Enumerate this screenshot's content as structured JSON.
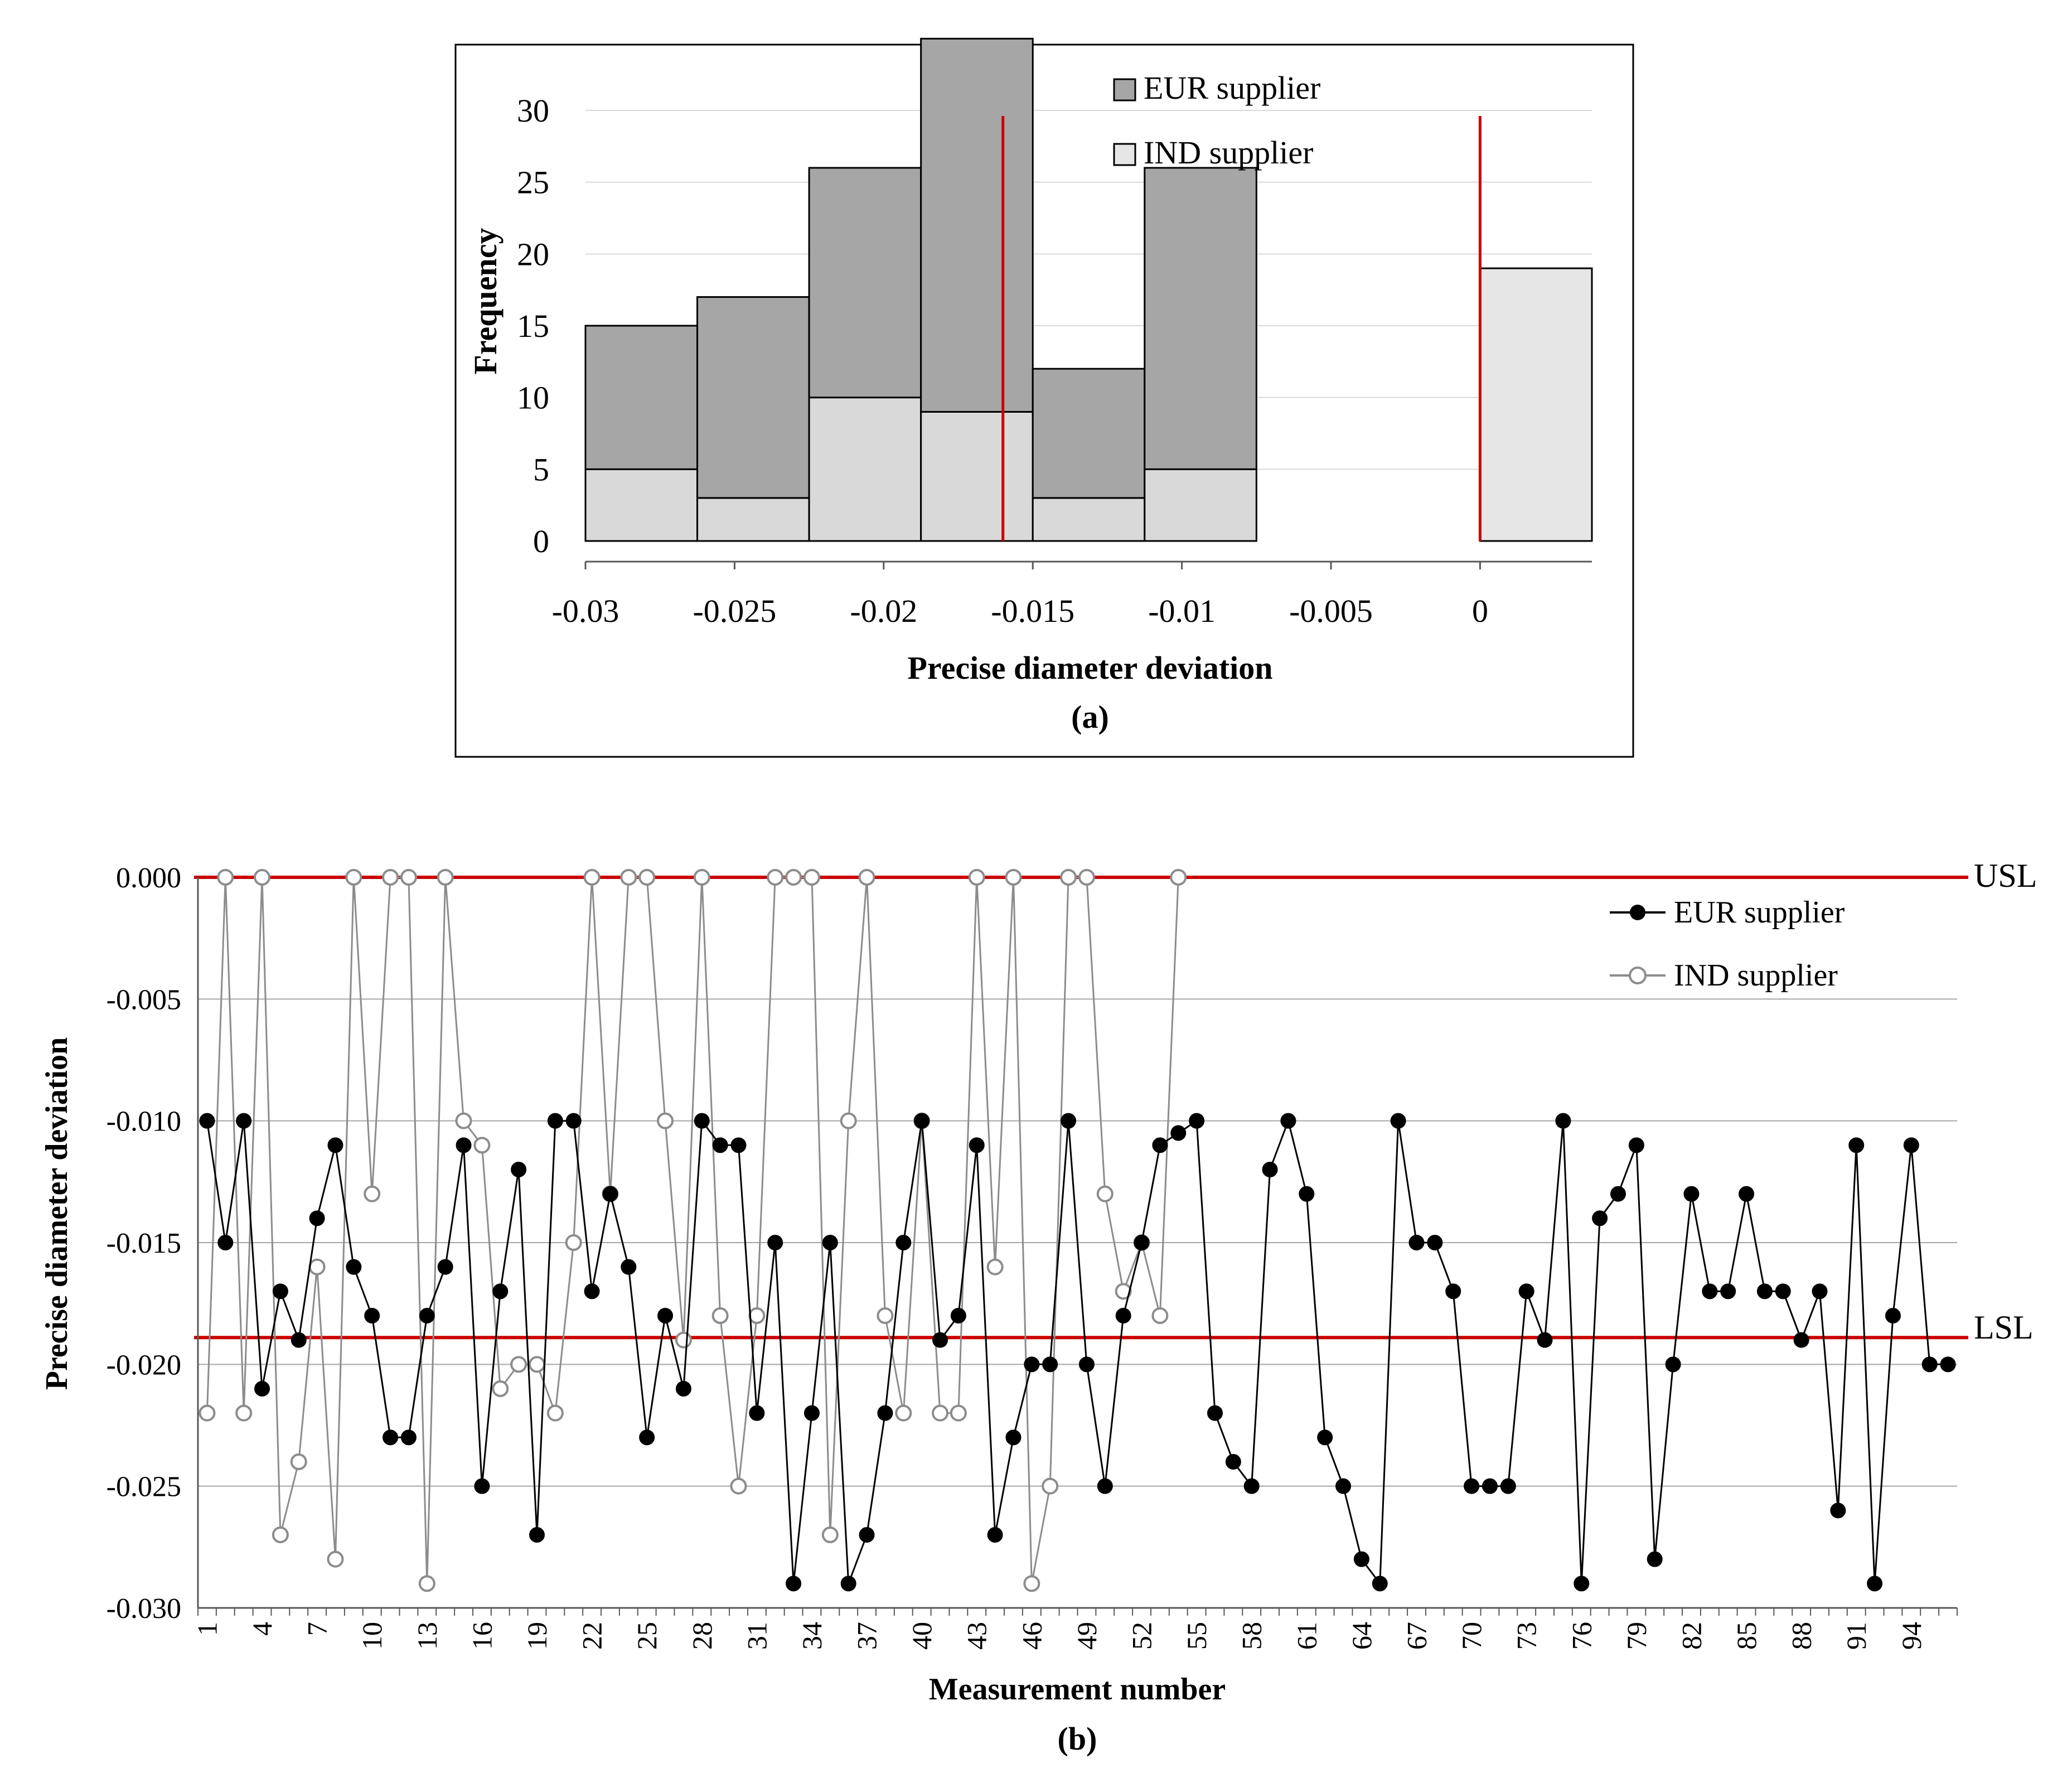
{
  "colors": {
    "eur_bar": "#a6a6a6",
    "ind_bar": "#d9d9d9",
    "ind_bar_light": "#e6e6e6",
    "spec_line": "#cc0000",
    "eur_line": "#000000",
    "ind_line": "#8c8c8c",
    "grid": "#d9d9d9",
    "grid_dark": "#a6a6a6"
  },
  "chart_data": [
    {
      "type": "bar",
      "panel_label": "(a)",
      "title": "",
      "xlabel": "Precise diameter deviation",
      "ylabel": "Frequency",
      "xlim": [
        -0.03,
        0.00375
      ],
      "ylim": [
        0,
        30
      ],
      "x_ticks": [
        -0.03,
        -0.025,
        -0.02,
        -0.015,
        -0.01,
        -0.005,
        0
      ],
      "x_tick_labels": [
        "-0.03",
        "-0.025",
        "-0.02",
        "-0.015",
        "-0.01",
        "-0.005",
        "0"
      ],
      "y_ticks": [
        0,
        5,
        10,
        15,
        20,
        25,
        30
      ],
      "y_tick_labels": [
        "0",
        "5",
        "10",
        "15",
        "20",
        "25",
        "30"
      ],
      "grid": true,
      "legend": "top-right",
      "bin_edges": [
        [
          -0.03,
          -0.02625
        ],
        [
          -0.02625,
          -0.0225
        ],
        [
          -0.0225,
          -0.01875
        ],
        [
          -0.01875,
          -0.015
        ],
        [
          -0.015,
          -0.01125
        ],
        [
          -0.01125,
          -0.0075
        ],
        [
          0,
          0.00375
        ]
      ],
      "series": [
        {
          "name": "EUR supplier",
          "values": [
            10,
            14,
            16,
            26,
            9,
            21,
            0
          ]
        },
        {
          "name": "IND supplier",
          "values": [
            5,
            3,
            10,
            9,
            3,
            5,
            19
          ]
        }
      ],
      "spec_lines": [
        -0.016,
        0
      ]
    },
    {
      "type": "line",
      "panel_label": "(b)",
      "title": "",
      "xlabel": "Measurement number",
      "ylabel": "Precise diameter deviation",
      "ylim": [
        -0.03,
        0
      ],
      "y_ticks": [
        0,
        -0.005,
        -0.01,
        -0.015,
        -0.02,
        -0.025,
        -0.03
      ],
      "y_tick_labels": [
        "0.000",
        "-0.005",
        "-0.010",
        "-0.015",
        "-0.020",
        "-0.025",
        "-0.030"
      ],
      "x_tick_labels": [
        "1",
        "4",
        "7",
        "10",
        "13",
        "16",
        "19",
        "22",
        "25",
        "28",
        "31",
        "34",
        "37",
        "40",
        "43",
        "46",
        "49",
        "52",
        "55",
        "58",
        "61",
        "64",
        "67",
        "70",
        "73",
        "76",
        "79",
        "82",
        "85",
        "88",
        "91",
        "94"
      ],
      "grid": true,
      "legend": "top-right",
      "spec_limits": [
        {
          "name": "USL",
          "value": 0
        },
        {
          "name": "LSL",
          "value": -0.0189
        }
      ],
      "series": [
        {
          "name": "EUR supplier",
          "marker": "filled-circle",
          "values": [
            -0.01,
            -0.015,
            -0.01,
            -0.021,
            -0.017,
            -0.019,
            -0.014,
            -0.011,
            -0.016,
            -0.018,
            -0.023,
            -0.023,
            -0.018,
            -0.016,
            -0.011,
            -0.025,
            -0.017,
            -0.012,
            -0.027,
            -0.01,
            -0.01,
            -0.017,
            -0.013,
            -0.016,
            -0.023,
            -0.018,
            -0.021,
            -0.01,
            -0.011,
            -0.011,
            -0.022,
            -0.015,
            -0.029,
            -0.022,
            -0.015,
            -0.029,
            -0.027,
            -0.022,
            -0.015,
            -0.01,
            -0.019,
            -0.018,
            -0.011,
            -0.027,
            -0.023,
            -0.02,
            -0.02,
            -0.01,
            -0.02,
            -0.025,
            -0.018,
            -0.015,
            -0.011,
            -0.0105,
            -0.01,
            -0.022,
            -0.024,
            -0.025,
            -0.012,
            -0.01,
            -0.013,
            -0.023,
            -0.025,
            -0.028,
            -0.029,
            -0.01,
            -0.015,
            -0.015,
            -0.017,
            -0.025,
            -0.025,
            -0.025,
            -0.017,
            -0.019,
            -0.01,
            -0.029,
            -0.014,
            -0.013,
            -0.011,
            -0.028,
            -0.02,
            -0.013,
            -0.017,
            -0.017,
            -0.013,
            -0.017,
            -0.017,
            -0.019,
            -0.017,
            -0.026,
            -0.011,
            -0.029,
            -0.018,
            -0.011,
            -0.02,
            -0.02
          ]
        },
        {
          "name": "IND supplier",
          "marker": "open-circle",
          "values": [
            -0.022,
            0,
            -0.022,
            0,
            -0.027,
            -0.024,
            -0.016,
            -0.028,
            0,
            -0.013,
            0,
            0,
            -0.029,
            0,
            -0.01,
            -0.011,
            -0.021,
            -0.02,
            -0.02,
            -0.022,
            -0.015,
            0,
            -0.013,
            0,
            0,
            -0.01,
            -0.019,
            0,
            -0.018,
            -0.025,
            -0.018,
            0,
            0,
            0,
            -0.027,
            -0.01,
            0,
            -0.018,
            -0.022,
            -0.01,
            -0.022,
            -0.022,
            0,
            -0.016,
            0,
            -0.029,
            -0.025,
            0,
            0,
            -0.013,
            -0.017,
            -0.015,
            -0.018,
            0
          ]
        }
      ]
    }
  ]
}
